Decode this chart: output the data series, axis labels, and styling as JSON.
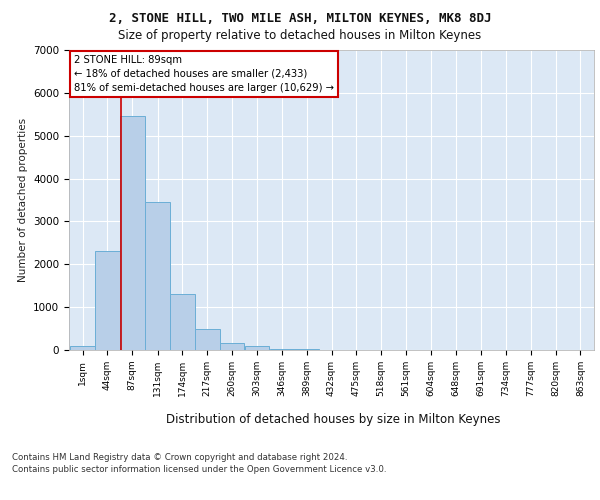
{
  "title": "2, STONE HILL, TWO MILE ASH, MILTON KEYNES, MK8 8DJ",
  "subtitle": "Size of property relative to detached houses in Milton Keynes",
  "xlabel": "Distribution of detached houses by size in Milton Keynes",
  "ylabel": "Number of detached properties",
  "footnote1": "Contains HM Land Registry data © Crown copyright and database right 2024.",
  "footnote2": "Contains public sector information licensed under the Open Government Licence v3.0.",
  "annotation_title": "2 STONE HILL: 89sqm",
  "annotation_line1": "← 18% of detached houses are smaller (2,433)",
  "annotation_line2": "81% of semi-detached houses are larger (10,629) →",
  "property_size_sqm": 89,
  "bin_starts": [
    1,
    44,
    87,
    131,
    174,
    217,
    260,
    303,
    346,
    389,
    432,
    475,
    518,
    561,
    604,
    648,
    691,
    734,
    777,
    820,
    863
  ],
  "bin_width": 43,
  "tick_labels": [
    "1sqm",
    "44sqm",
    "87sqm",
    "131sqm",
    "174sqm",
    "217sqm",
    "260sqm",
    "303sqm",
    "346sqm",
    "389sqm",
    "432sqm",
    "475sqm",
    "518sqm",
    "561sqm",
    "604sqm",
    "648sqm",
    "691sqm",
    "734sqm",
    "777sqm",
    "820sqm",
    "863sqm"
  ],
  "bar_heights": [
    100,
    2300,
    5450,
    3450,
    1300,
    480,
    160,
    100,
    30,
    15,
    5,
    3,
    2,
    2,
    1,
    1,
    1,
    1,
    1,
    1,
    0
  ],
  "bar_color": "#b8cfe8",
  "bar_edge_color": "#6baed6",
  "background_color": "#dce8f5",
  "grid_color": "#ffffff",
  "vline_color": "#cc0000",
  "vline_x": 89,
  "annotation_box_facecolor": "#ffffff",
  "annotation_box_edgecolor": "#cc0000",
  "ylim": [
    0,
    7000
  ],
  "yticks": [
    0,
    1000,
    2000,
    3000,
    4000,
    5000,
    6000,
    7000
  ]
}
